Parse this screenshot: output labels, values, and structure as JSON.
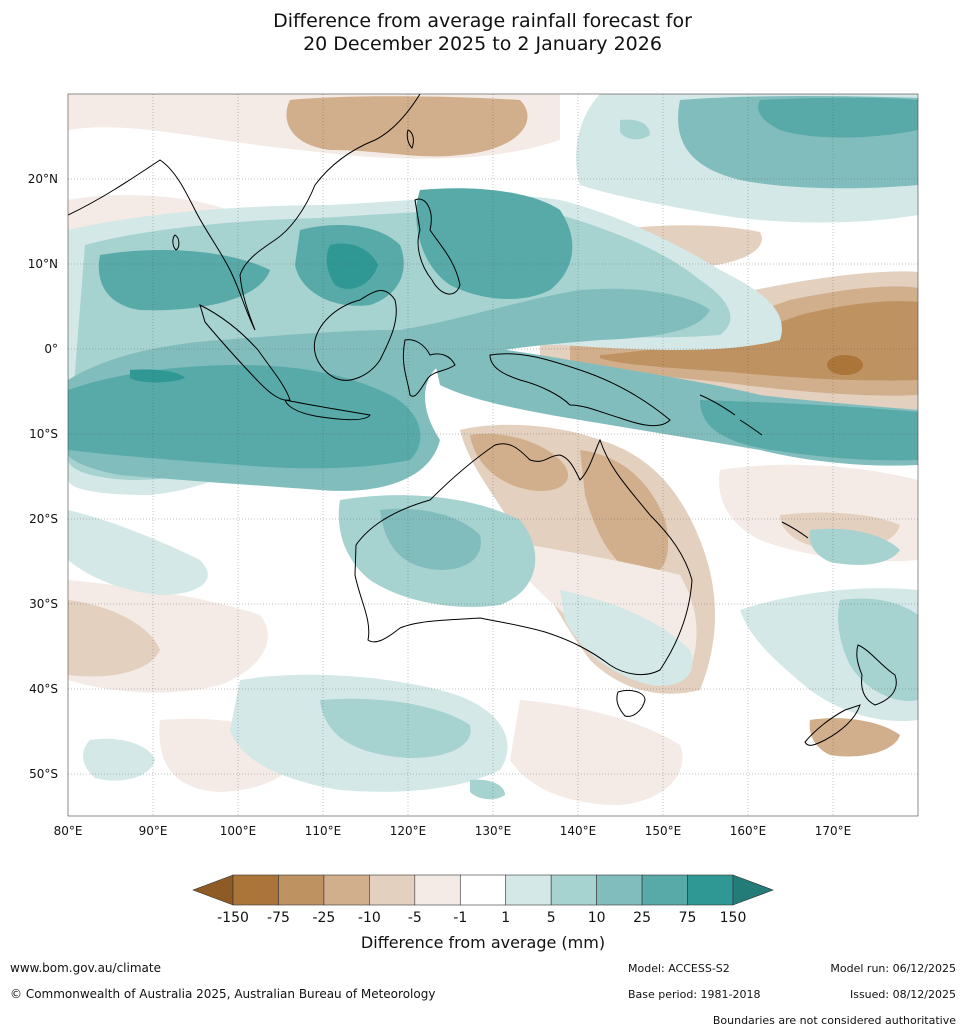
{
  "title": {
    "line1": "Difference from average rainfall forecast for",
    "line2": "20 December 2025 to 2 January 2026"
  },
  "axes": {
    "lat_labels": [
      "20°N",
      "10°N",
      "0°",
      "10°S",
      "20°S",
      "30°S",
      "40°S",
      "50°S"
    ],
    "lon_labels": [
      "80°E",
      "90°E",
      "100°E",
      "110°E",
      "120°E",
      "130°E",
      "140°E",
      "150°E",
      "160°E",
      "170°E"
    ]
  },
  "colorbar": {
    "ticks": [
      "-150",
      "-75",
      "-25",
      "-10",
      "-5",
      "-1",
      "1",
      "5",
      "10",
      "25",
      "75",
      "150"
    ],
    "colors": [
      "#ab7439",
      "#bf9262",
      "#d2af8c",
      "#e4d0bf",
      "#f4ebe6",
      "#ffffff",
      "#d3e8e7",
      "#a6d2d0",
      "#82bdbd",
      "#57aaa8",
      "#2f9894"
    ],
    "low_color": "#8e5a26",
    "high_color": "#247c78",
    "label": "Difference from average (mm)"
  },
  "footer": {
    "url": "www.bom.gov.au/climate",
    "copyright": "© Commonwealth of Australia 2025, Australian Bureau of Meteorology",
    "model": "Model: ACCESS-S2",
    "base_period": "Base period: 1981-2018",
    "model_run": "Model run: 06/12/2025",
    "issued": "Issued: 08/12/2025",
    "disclaimer": "Boundaries are not considered authoritative"
  }
}
